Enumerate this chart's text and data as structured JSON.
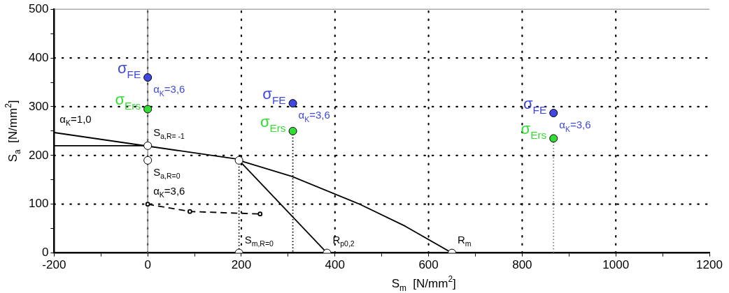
{
  "chart_data": {
    "type": "line",
    "xlabel": "S$_{m}$  [N/mm$^{2}$]",
    "ylabel": "S$_{a}$  [N/mm$^{2}$]",
    "xlim": [
      -200,
      1200
    ],
    "ylim": [
      0,
      500
    ],
    "xticks": [
      -200,
      {
        "value": -100,
        "label": null
      },
      0,
      {
        "value": 100,
        "label": null
      },
      200,
      {
        "value": 300,
        "label": null
      },
      400,
      {
        "value": 500,
        "label": null
      },
      600,
      {
        "value": 700,
        "label": null
      },
      800,
      {
        "value": 900,
        "label": null
      },
      1000,
      {
        "value": 1100,
        "label": null
      },
      1200
    ],
    "yticks": [
      0,
      {
        "value": 50,
        "label": null
      },
      100,
      {
        "value": 150,
        "label": null
      },
      200,
      {
        "value": 250,
        "label": null
      },
      300,
      {
        "value": 350,
        "label": null
      },
      400,
      {
        "value": 450,
        "label": null
      },
      500
    ],
    "grid": true,
    "legend": false,
    "ref_lines": [
      {
        "axis": "x",
        "value": 0,
        "color": "#808080",
        "line_style": "solid"
      }
    ],
    "series": [
      {
        "color": "#000000",
        "x": [
          -200,
          195
        ],
        "values": [
          247,
          192
        ],
        "marker": "none"
      },
      {
        "color": "#000000",
        "x": [
          -200,
          0
        ],
        "values": [
          220,
          220
        ],
        "marker": "none"
      },
      {
        "color": "#000000",
        "x": [
          195,
          308,
          453,
          550,
          650
        ],
        "values": [
          190,
          157,
          100,
          55,
          0
        ],
        "marker": "none"
      },
      {
        "color": "#000000",
        "x": [
          195,
          383
        ],
        "values": [
          190,
          0
        ],
        "marker": "none"
      },
      {
        "color": "#000000",
        "x": [
          0,
          90,
          240
        ],
        "values": [
          100,
          85,
          80
        ],
        "marker": "circle",
        "line_style": "dashed"
      },
      {
        "color": "#000000",
        "x": [
          310,
          310
        ],
        "values": [
          250,
          0
        ],
        "marker": "none",
        "line_style": "dotted"
      },
      {
        "color": "#000000",
        "x": [
          195,
          195
        ],
        "values": [
          190,
          0
        ],
        "marker": "none",
        "line_style": "dotted"
      },
      {
        "color": "#808080",
        "x": [
          867,
          867
        ],
        "values": [
          235,
          0
        ],
        "marker": "none",
        "line_style": "dotted"
      },
      {
        "type": "scatter",
        "name": "σ$_{FE}$",
        "color": "#3f48e0",
        "x": [
          0,
          310,
          867
        ],
        "values": [
          360,
          307,
          287
        ],
        "marker": "circle"
      },
      {
        "type": "scatter",
        "name": "σ$_{Ers}$",
        "color": "#33dd33",
        "x": [
          0,
          310,
          867
        ],
        "values": [
          295,
          250,
          235
        ],
        "marker": "circle"
      },
      {
        "type": "scatter",
        "color": "#ffffff",
        "x": [
          0,
          0,
          195,
          195,
          383,
          650
        ],
        "values": [
          220,
          190,
          190,
          0,
          0,
          0
        ],
        "marker": "circle"
      }
    ],
    "annotations": [
      {
        "text": "α$_{K}$=1,0",
        "x": -200,
        "y": 247
      },
      {
        "text": "S$_{a,R= -1}$",
        "x": 0,
        "y": 220
      },
      {
        "text": "S$_{a,R=0}$",
        "x": 0,
        "y": 190
      },
      {
        "text": "α$_{K}$=3,6",
        "x": 0,
        "y": 100
      },
      {
        "text": "S$_{m,R=0}$",
        "x": 195,
        "y": 0
      },
      {
        "text": "R$_{p0,2}$",
        "x": 383,
        "y": 0
      },
      {
        "text": "R$_{m}$",
        "x": 650,
        "y": 0
      },
      {
        "text": "α$_{K}$=3,6",
        "x": 0,
        "y": 360
      },
      {
        "text": "α$_{K}$=3,6",
        "x": 310,
        "y": 307
      },
      {
        "text": "α$_{K}$=3,6",
        "x": 867,
        "y": 287
      }
    ]
  }
}
